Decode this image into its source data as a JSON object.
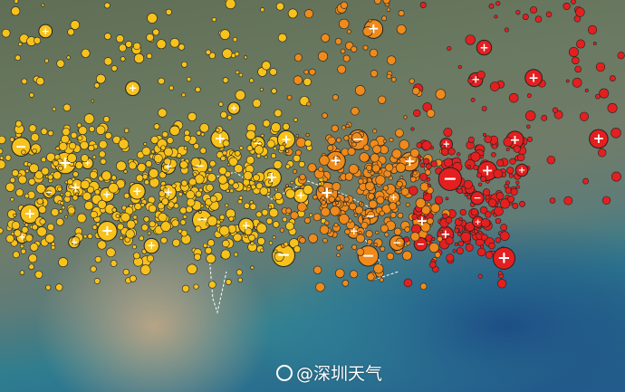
{
  "map": {
    "marker_colors": {
      "west": "#f7c21b",
      "middle": "#f08a1a",
      "east": "#e41f1f"
    },
    "polarity_symbols": [
      "+",
      "−"
    ]
  },
  "watermark": {
    "logo": "weibo-logo",
    "text": "@深圳天气"
  }
}
